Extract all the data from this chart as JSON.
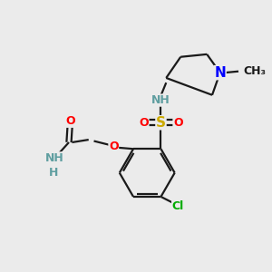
{
  "bg_color": "#ebebeb",
  "bond_color": "#1a1a1a",
  "bond_width": 1.6,
  "atom_colors": {
    "O": "#ff0000",
    "N": "#0000ff",
    "S": "#ccaa00",
    "Cl": "#00aa00",
    "NH_label": "#5f9ea0",
    "C": "#1a1a1a"
  },
  "font_size_atom": 11,
  "font_size_small": 9,
  "font_size_tiny": 8
}
